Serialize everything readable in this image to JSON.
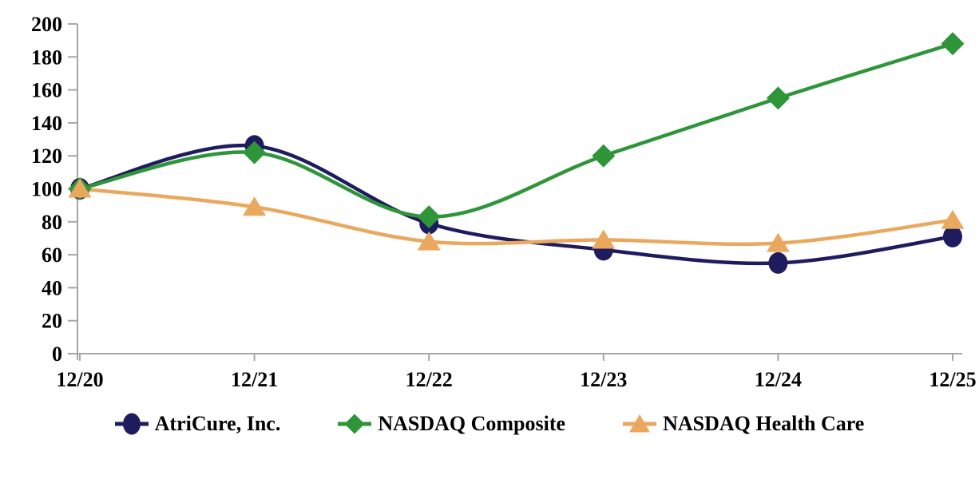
{
  "chart_data": {
    "type": "line",
    "smooth": true,
    "x": [
      "12/20",
      "12/21",
      "12/22",
      "12/23",
      "12/24",
      "12/25"
    ],
    "series": [
      {
        "name": "AtriCure, Inc.",
        "marker": "circle",
        "color": "#1E1C5F",
        "values": [
          100,
          126,
          79,
          63,
          55,
          71
        ]
      },
      {
        "name": "NASDAQ Composite",
        "marker": "diamond",
        "color": "#2E9639",
        "values": [
          100,
          122,
          83,
          120,
          155,
          188
        ]
      },
      {
        "name": "NASDAQ Health Care",
        "marker": "triangle",
        "color": "#EAA85E",
        "values": [
          100,
          89,
          68,
          69,
          67,
          81
        ]
      }
    ],
    "ylim": [
      0,
      200
    ],
    "ytick_step": 20,
    "ytick_labels": [
      "0",
      "20",
      "40",
      "60",
      "80",
      "100",
      "120",
      "140",
      "160",
      "180",
      "200"
    ],
    "xlabel": "",
    "ylabel": "",
    "title": "",
    "grid": "off",
    "legend_position": "bottom",
    "axis_color": "#A6A6A6",
    "label_color": "#000000",
    "background_color": "#FFFFFF"
  }
}
